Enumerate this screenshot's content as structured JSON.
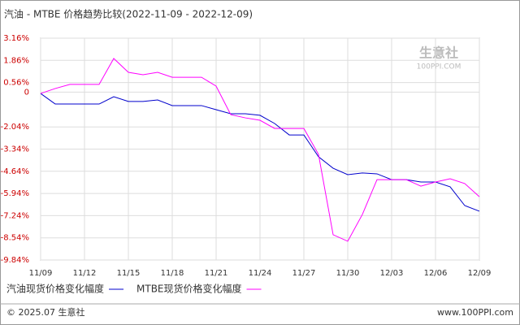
{
  "chart_data": {
    "type": "line",
    "title": "汽油 - MTBE 价格趋势比较(2022-11-09 - 2022-12-09)",
    "categories": [
      "11/09",
      null,
      null,
      "11/12",
      null,
      null,
      "11/15",
      null,
      null,
      "11/18",
      null,
      null,
      "11/21",
      null,
      null,
      "11/24",
      null,
      null,
      "11/27",
      null,
      null,
      "11/30",
      null,
      null,
      "12/03",
      null,
      null,
      "12/06",
      null,
      null,
      "12/09"
    ],
    "series": [
      {
        "name": "汽油现货价格变化幅度",
        "color": "#0000cc",
        "values": [
          -0.08,
          -0.7,
          -0.7,
          -0.7,
          -0.7,
          -0.27,
          -0.55,
          -0.55,
          -0.46,
          -0.79,
          -0.79,
          -0.79,
          -1.03,
          -1.27,
          -1.27,
          -1.36,
          -1.84,
          -2.51,
          -2.51,
          -3.79,
          -4.46,
          -4.84,
          -4.74,
          -4.79,
          -5.13,
          -5.13,
          -5.27,
          -5.27,
          -5.55,
          -6.65,
          -6.98
        ]
      },
      {
        "name": "MTBE现货价格变化幅度",
        "color": "#ff00ff",
        "values": [
          -0.08,
          0.21,
          0.45,
          0.45,
          0.45,
          1.97,
          1.16,
          1.02,
          1.16,
          0.87,
          0.87,
          0.87,
          0.35,
          -1.32,
          -1.51,
          -1.65,
          -2.13,
          -2.13,
          -2.13,
          -3.65,
          -8.36,
          -8.74,
          -7.17,
          -5.13,
          -5.13,
          -5.13,
          -5.51,
          -5.27,
          -5.08,
          -5.36,
          -6.13
        ]
      }
    ],
    "ylim": [
      -9.84,
      3.16
    ],
    "yticks": [
      {
        "value": 3.16,
        "label": "3.16%"
      },
      {
        "value": 1.86,
        "label": "1.86%"
      },
      {
        "value": 0.56,
        "label": "0.56%"
      },
      0,
      {
        "value": -2.04,
        "label": "-2.04%"
      },
      {
        "value": -3.34,
        "label": "-3.34%"
      },
      {
        "value": -4.64,
        "label": "-4.64%"
      },
      {
        "value": -5.94,
        "label": "-5.94%"
      },
      {
        "value": -7.24,
        "label": "-7.24%"
      },
      {
        "value": -8.54,
        "label": "-8.54%"
      },
      {
        "value": -9.84,
        "label": "-9.84%"
      }
    ],
    "grid": true,
    "watermark": "生意社",
    "watermark_url": "100PPI.COM",
    "footer_left": "© 2025.07 生意社",
    "footer_right": "www.100PPI.com"
  }
}
